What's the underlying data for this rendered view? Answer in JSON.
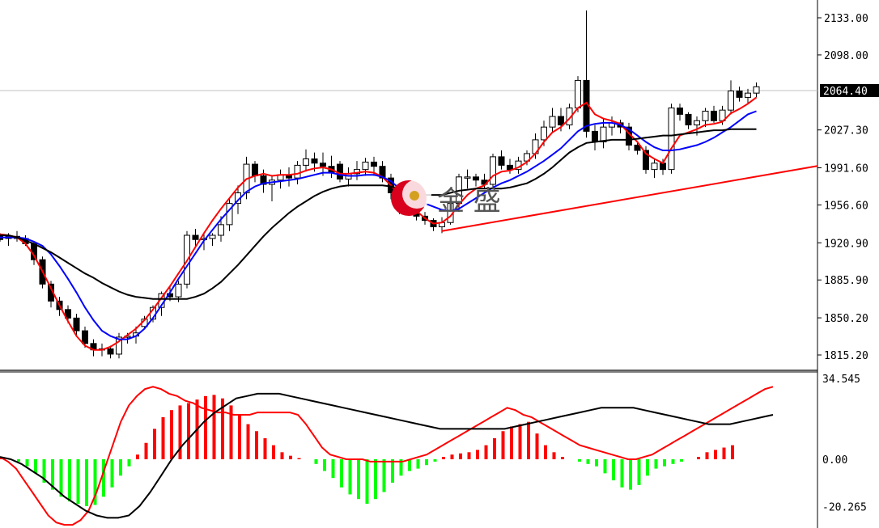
{
  "chart_data": [
    {
      "type": "candlestick",
      "price_axis": {
        "ticks": [
          "2133.00",
          "2098.00",
          "2027.30",
          "1991.60",
          "1956.60",
          "1920.90",
          "1885.90",
          "1850.20",
          "1815.20"
        ],
        "current_price_label": "2064.40",
        "ylim": [
          1798,
          2143
        ]
      },
      "candles": [
        [
          1928,
          1930,
          1922,
          1924
        ],
        [
          1925,
          1930,
          1918,
          1927
        ],
        [
          1927,
          1932,
          1922,
          1925
        ],
        [
          1925,
          1928,
          1918,
          1920
        ],
        [
          1920,
          1922,
          1900,
          1905
        ],
        [
          1905,
          1908,
          1878,
          1882
        ],
        [
          1882,
          1885,
          1860,
          1866
        ],
        [
          1866,
          1870,
          1852,
          1858
        ],
        [
          1858,
          1862,
          1845,
          1850
        ],
        [
          1850,
          1854,
          1834,
          1838
        ],
        [
          1838,
          1842,
          1822,
          1826
        ],
        [
          1826,
          1830,
          1814,
          1820
        ],
        [
          1820,
          1826,
          1814,
          1821
        ],
        [
          1821,
          1824,
          1812,
          1816
        ],
        [
          1816,
          1836,
          1812,
          1832
        ],
        [
          1832,
          1836,
          1826,
          1833
        ],
        [
          1833,
          1842,
          1826,
          1836
        ],
        [
          1842,
          1852,
          1840,
          1849
        ],
        [
          1849,
          1862,
          1846,
          1860
        ],
        [
          1860,
          1875,
          1852,
          1873
        ],
        [
          1873,
          1880,
          1866,
          1870
        ],
        [
          1870,
          1885,
          1865,
          1882
        ],
        [
          1882,
          1932,
          1878,
          1928
        ],
        [
          1928,
          1934,
          1918,
          1924
        ],
        [
          1924,
          1930,
          1914,
          1925
        ],
        [
          1925,
          1930,
          1918,
          1928
        ],
        [
          1928,
          1946,
          1922,
          1938
        ],
        [
          1938,
          1962,
          1932,
          1958
        ],
        [
          1958,
          1975,
          1948,
          1968
        ],
        [
          1968,
          2002,
          1962,
          1995
        ],
        [
          1995,
          1998,
          1978,
          1984
        ],
        [
          1984,
          1990,
          1968,
          1976
        ],
        [
          1976,
          1984,
          1960,
          1980
        ],
        [
          1980,
          1990,
          1972,
          1985
        ],
        [
          1985,
          1992,
          1974,
          1982
        ],
        [
          1982,
          1998,
          1976,
          1994
        ],
        [
          1994,
          2009,
          1988,
          2000
        ],
        [
          2000,
          2006,
          1988,
          1996
        ],
        [
          1996,
          2006,
          1984,
          1993
        ],
        [
          1993,
          2003,
          1982,
          1987
        ],
        [
          1995,
          1998,
          1978,
          1981
        ],
        [
          1981,
          1992,
          1974,
          1986
        ],
        [
          1986,
          1998,
          1980,
          1990
        ],
        [
          1990,
          2001,
          1984,
          1997
        ],
        [
          1997,
          2002,
          1984,
          1993
        ],
        [
          1993,
          1998,
          1978,
          1982
        ],
        [
          1982,
          1986,
          1962,
          1968
        ],
        [
          1968,
          1972,
          1948,
          1956
        ],
        [
          1956,
          1968,
          1950,
          1963
        ],
        [
          1963,
          1968,
          1942,
          1946
        ],
        [
          1946,
          1950,
          1938,
          1942
        ],
        [
          1942,
          1944,
          1932,
          1936
        ],
        [
          1936,
          1945,
          1930,
          1940
        ],
        [
          1940,
          1962,
          1938,
          1958
        ],
        [
          1958,
          1986,
          1950,
          1983
        ],
        [
          1983,
          1990,
          1972,
          1983
        ],
        [
          1983,
          1986,
          1974,
          1980
        ],
        [
          1980,
          1986,
          1972,
          1976
        ],
        [
          1976,
          2005,
          1972,
          2002
        ],
        [
          2002,
          2008,
          1990,
          1994
        ],
        [
          1994,
          2000,
          1986,
          1990
        ],
        [
          1990,
          2002,
          1986,
          1998
        ],
        [
          1998,
          2008,
          1994,
          2005
        ],
        [
          2005,
          2024,
          2000,
          2018
        ],
        [
          2018,
          2036,
          2012,
          2030
        ],
        [
          2030,
          2048,
          2024,
          2040
        ],
        [
          2040,
          2048,
          2026,
          2032
        ],
        [
          2032,
          2052,
          2028,
          2048
        ],
        [
          2048,
          2078,
          2044,
          2074
        ],
        [
          2074,
          2140,
          2020,
          2026
        ],
        [
          2026,
          2032,
          2008,
          2016
        ],
        [
          2016,
          2038,
          2010,
          2030
        ],
        [
          2030,
          2040,
          2022,
          2034
        ],
        [
          2034,
          2037,
          2024,
          2030
        ],
        [
          2030,
          2034,
          2008,
          2013
        ],
        [
          2013,
          2016,
          2004,
          2008
        ],
        [
          2008,
          2012,
          1986,
          1990
        ],
        [
          1990,
          2000,
          1982,
          1996
        ],
        [
          1996,
          2000,
          1985,
          1990
        ],
        [
          1990,
          2052,
          1986,
          2048
        ],
        [
          2048,
          2052,
          2036,
          2042
        ],
        [
          2042,
          2044,
          2028,
          2032
        ],
        [
          2032,
          2040,
          2022,
          2036
        ],
        [
          2036,
          2048,
          2030,
          2045
        ],
        [
          2045,
          2050,
          2034,
          2036
        ],
        [
          2036,
          2050,
          2032,
          2046
        ],
        [
          2046,
          2074,
          2042,
          2064
        ],
        [
          2064,
          2068,
          2054,
          2058
        ],
        [
          2058,
          2066,
          2052,
          2062
        ],
        [
          2062,
          2072,
          2058,
          2068
        ]
      ],
      "series": [
        {
          "color": "#ff0000",
          "values": [
            1929,
            1928,
            1926,
            1920,
            1909,
            1894,
            1878,
            1862,
            1847,
            1833,
            1824,
            1820,
            1820,
            1823,
            1828,
            1834,
            1840,
            1848,
            1858,
            1869,
            1880,
            1892,
            1904,
            1917,
            1930,
            1942,
            1953,
            1963,
            1973,
            1981,
            1984,
            1986,
            1984,
            1985,
            1985,
            1986,
            1989,
            1991,
            1992,
            1990,
            1986,
            1986,
            1987,
            1988,
            1987,
            1983,
            1975,
            1966,
            1959,
            1951,
            1944,
            1939,
            1940,
            1946,
            1957,
            1966,
            1972,
            1975,
            1984,
            1988,
            1989,
            1992,
            1997,
            2005,
            2016,
            2025,
            2030,
            2038,
            2048,
            2053,
            2042,
            2038,
            2036,
            2033,
            2024,
            2016,
            2005,
            2000,
            1996,
            2010,
            2022,
            2025,
            2028,
            2032,
            2033,
            2035,
            2043,
            2047,
            2052,
            2058
          ]
        },
        {
          "color": "#0000ff",
          "values": [
            1926,
            1926,
            1926,
            1925,
            1922,
            1918,
            1910,
            1899,
            1887,
            1874,
            1860,
            1848,
            1838,
            1833,
            1830,
            1830,
            1833,
            1840,
            1850,
            1862,
            1874,
            1887,
            1899,
            1911,
            1923,
            1933,
            1943,
            1952,
            1961,
            1969,
            1974,
            1977,
            1978,
            1979,
            1980,
            1981,
            1983,
            1985,
            1987,
            1987,
            1985,
            1984,
            1984,
            1985,
            1985,
            1983,
            1979,
            1972,
            1966,
            1961,
            1958,
            1955,
            1952,
            1951,
            1953,
            1958,
            1963,
            1968,
            1973,
            1977,
            1980,
            1984,
            1988,
            1993,
            1998,
            2004,
            2010,
            2018,
            2026,
            2031,
            2033,
            2034,
            2034,
            2032,
            2028,
            2022,
            2016,
            2011,
            2008,
            2008,
            2009,
            2011,
            2013,
            2016,
            2020,
            2025,
            2030,
            2036,
            2042,
            2045
          ]
        },
        {
          "color": "#000000",
          "values": [
            1928,
            1928,
            1926,
            1923,
            1920,
            1916,
            1912,
            1907,
            1902,
            1897,
            1892,
            1888,
            1883,
            1879,
            1875,
            1872,
            1870,
            1869,
            1868,
            1868,
            1868,
            1868,
            1868,
            1870,
            1873,
            1878,
            1884,
            1892,
            1900,
            1909,
            1918,
            1927,
            1935,
            1942,
            1949,
            1955,
            1960,
            1965,
            1969,
            1972,
            1974,
            1975,
            1975,
            1975,
            1975,
            1975,
            1974,
            1972,
            1970,
            1967,
            1966,
            1966,
            1966,
            1968,
            1970,
            1971,
            1972,
            1972,
            1972,
            1972,
            1973,
            1975,
            1977,
            1981,
            1986,
            1992,
            1999,
            2006,
            2011,
            2015,
            2016,
            2017,
            2018,
            2018,
            2018,
            2019,
            2020,
            2021,
            2022,
            2022,
            2023,
            2024,
            2025,
            2026,
            2027,
            2027,
            2028,
            2028,
            2028,
            2028
          ]
        }
      ],
      "trendline": [
        [
          52,
          1932
        ],
        [
          101,
          2000
        ]
      ]
    },
    {
      "type": "bar",
      "name": "MACD",
      "axis_ticks": [
        "34.545",
        "0.00",
        "-20.265"
      ],
      "ylim": [
        -28,
        36
      ],
      "histogram": [
        0.5,
        0,
        -1,
        -3,
        -6,
        -10,
        -13,
        -16,
        -18,
        -19,
        -20,
        -19.5,
        -16,
        -12,
        -7,
        -3,
        2,
        7,
        13,
        18,
        21,
        23,
        24,
        25.5,
        27,
        27.5,
        26,
        23,
        19,
        15,
        12,
        9,
        6,
        3,
        1.5,
        0.5,
        0,
        -2,
        -5,
        -8,
        -12,
        -15,
        -17,
        -19,
        -17,
        -14,
        -10,
        -7,
        -5,
        -4,
        -2.5,
        -1,
        1,
        2,
        2.5,
        3,
        4,
        6,
        9,
        12,
        14,
        15,
        16,
        11,
        6,
        3,
        1,
        0,
        -1,
        -2,
        -3,
        -6,
        -9,
        -12,
        -13,
        -11,
        -7,
        -4,
        -3,
        -2,
        -1,
        0,
        1,
        3,
        4,
        5,
        6
      ],
      "series": [
        {
          "color": "#ff0000",
          "values": [
            1,
            -1,
            -4,
            -9,
            -14,
            -19,
            -24,
            -27,
            -28,
            -28,
            -26,
            -22,
            -14,
            -4,
            6,
            16,
            23,
            27,
            30,
            31,
            30,
            28,
            27,
            25,
            24,
            22,
            21,
            20,
            20,
            19,
            19,
            19,
            20,
            20,
            20,
            20,
            20,
            19,
            15,
            10,
            5,
            2,
            1,
            0,
            0,
            0,
            -1,
            -1,
            -1,
            -1,
            -1,
            0,
            1,
            2,
            4,
            6,
            8,
            10,
            12,
            14,
            16,
            18,
            20,
            22,
            21,
            19,
            18,
            16,
            14,
            12,
            10,
            8,
            6,
            5,
            4,
            3,
            2,
            1,
            0,
            0,
            1,
            2,
            4,
            6,
            8,
            10,
            12,
            14,
            16,
            18,
            20,
            22,
            24,
            26,
            28,
            30,
            31
          ]
        },
        {
          "color": "#000000",
          "values": [
            1,
            0,
            -2,
            -5,
            -8,
            -12,
            -16,
            -19,
            -22,
            -24,
            -25,
            -25,
            -24,
            -20,
            -14,
            -7,
            0,
            6,
            11,
            16,
            20,
            23,
            26,
            27,
            28,
            28,
            28,
            27,
            26,
            25,
            24,
            23,
            22,
            21,
            20,
            19,
            18,
            17,
            16,
            15,
            14,
            13,
            13,
            13,
            13,
            13,
            13,
            13,
            14,
            15,
            16,
            17,
            18,
            19,
            20,
            21,
            22,
            22,
            22,
            22,
            21,
            20,
            19,
            18,
            17,
            16,
            15,
            15,
            15,
            16,
            17,
            18,
            19
          ]
        }
      ]
    }
  ],
  "watermark": {
    "text": "金 盛"
  }
}
